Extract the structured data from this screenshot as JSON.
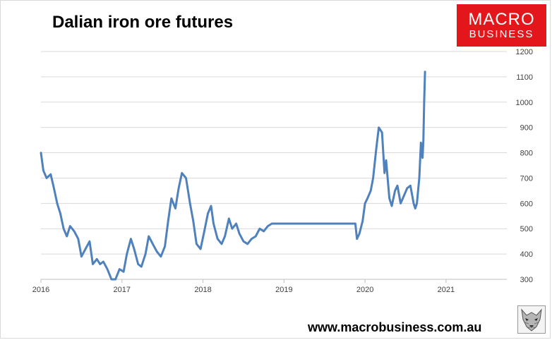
{
  "title": "Dalian iron ore futures",
  "logo": {
    "line1": "MACRO",
    "line2": "BUSINESS"
  },
  "website": "www.macrobusiness.com.au",
  "icons": {
    "wolf": "wolf-logo-icon"
  },
  "colors": {
    "series": "#4f81bd",
    "logo_bg": "#e3171b",
    "grid": "#d9d9d9"
  },
  "chart_data": {
    "type": "line",
    "title": "Dalian iron ore futures",
    "x_ticks": [
      "2016",
      "2017",
      "2018",
      "2019",
      "2020",
      "2021"
    ],
    "y_ticks": [
      300,
      400,
      500,
      600,
      700,
      800,
      900,
      1000,
      1100,
      1200
    ],
    "ylim": [
      300,
      1200
    ],
    "xlim": [
      2016.0,
      2021.75
    ],
    "y_axis_side": "right",
    "grid": "horizontal",
    "series": [
      {
        "x": [
          2016.0,
          2016.03,
          2016.07,
          2016.12,
          2016.16,
          2016.2,
          2016.24,
          2016.28,
          2016.32,
          2016.36,
          2016.41,
          2016.46,
          2016.5,
          2016.55,
          2016.6,
          2016.64,
          2016.69,
          2016.73,
          2016.77,
          2016.82,
          2016.87,
          2016.92,
          2016.97,
          2017.02,
          2017.06,
          2017.11,
          2017.15,
          2017.2,
          2017.24,
          2017.29,
          2017.33,
          2017.38,
          2017.43,
          2017.48,
          2017.53,
          2017.57,
          2017.61,
          2017.66,
          2017.7,
          2017.74,
          2017.79,
          2017.84,
          2017.88,
          2017.92,
          2017.97,
          2018.01,
          2018.06,
          2018.1,
          2018.13,
          2018.18,
          2018.23,
          2018.27,
          2018.32,
          2018.36,
          2018.41,
          2018.45,
          2018.5,
          2018.55,
          2018.6,
          2018.65,
          2018.7,
          2018.75,
          2018.8,
          2018.85,
          2019.0,
          2019.5,
          2019.88,
          2019.9,
          2019.93,
          2019.97,
          2020.0,
          2020.03,
          2020.07,
          2020.1,
          2020.14,
          2020.17,
          2020.21,
          2020.24,
          2020.26,
          2020.3,
          2020.33,
          2020.37,
          2020.4,
          2020.44,
          2020.48,
          2020.52,
          2020.56,
          2020.6,
          2020.62,
          2020.64,
          2020.67,
          2020.69,
          2020.71,
          2020.72,
          2020.73,
          2020.74
        ],
        "y": [
          800,
          730,
          700,
          715,
          660,
          600,
          560,
          500,
          470,
          510,
          490,
          460,
          390,
          420,
          450,
          360,
          380,
          360,
          370,
          340,
          300,
          290,
          340,
          330,
          400,
          460,
          420,
          360,
          350,
          400,
          470,
          440,
          410,
          390,
          430,
          530,
          620,
          580,
          660,
          720,
          700,
          600,
          530,
          440,
          420,
          480,
          560,
          590,
          520,
          460,
          440,
          470,
          540,
          500,
          520,
          480,
          450,
          440,
          460,
          470,
          500,
          490,
          510,
          520,
          520,
          520,
          520,
          460,
          480,
          530,
          600,
          620,
          650,
          700,
          820,
          900,
          880,
          720,
          770,
          620,
          590,
          650,
          670,
          600,
          630,
          660,
          670,
          600,
          580,
          600,
          700,
          840,
          780,
          850,
          1000,
          1120
        ]
      }
    ]
  }
}
